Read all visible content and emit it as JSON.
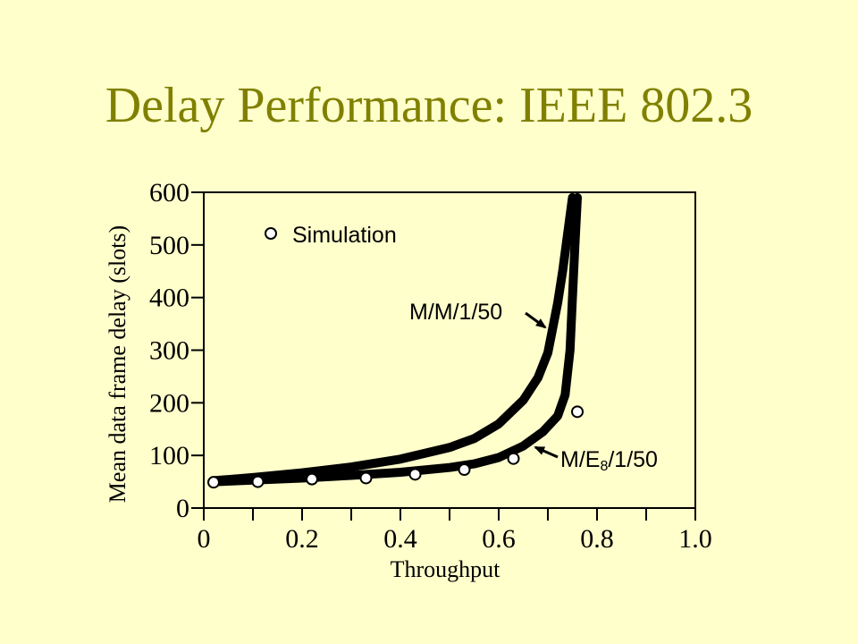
{
  "slide": {
    "title": "Delay Performance: IEEE 802.3"
  },
  "chart_data": {
    "type": "line",
    "xlabel": "Throughput",
    "ylabel": "Mean data frame delay (slots)",
    "xlim": [
      0,
      1.0
    ],
    "ylim": [
      0,
      600
    ],
    "x_tick_labels": [
      "0",
      "0.2",
      "0.4",
      "0.6",
      "0.8",
      "1.0"
    ],
    "x_tick_values": [
      0,
      0.2,
      0.4,
      0.6,
      0.8,
      1.0
    ],
    "x_minor_ticks": [
      0.1,
      0.3,
      0.5,
      0.7,
      0.9
    ],
    "y_tick_labels": [
      "0",
      "100",
      "200",
      "300",
      "400",
      "500",
      "600"
    ],
    "y_tick_values": [
      0,
      100,
      200,
      300,
      400,
      500,
      600
    ],
    "grid": false,
    "legend": {
      "position": "top-left",
      "entries": [
        "Simulation"
      ]
    },
    "series": [
      {
        "name": "M/M/1/50",
        "style": "thick-line",
        "x": [
          0.02,
          0.1,
          0.2,
          0.3,
          0.4,
          0.5,
          0.55,
          0.6,
          0.65,
          0.68,
          0.7,
          0.72,
          0.73,
          0.74,
          0.75
        ],
        "y": [
          52,
          58,
          67,
          78,
          93,
          115,
          132,
          160,
          205,
          248,
          295,
          390,
          450,
          520,
          590
        ]
      },
      {
        "name": "M/E8/1/50",
        "style": "thick-line",
        "x": [
          0.02,
          0.1,
          0.2,
          0.3,
          0.4,
          0.5,
          0.55,
          0.6,
          0.65,
          0.69,
          0.72,
          0.735,
          0.745,
          0.75,
          0.755,
          0.76
        ],
        "y": [
          50,
          53,
          57,
          62,
          68,
          77,
          84,
          96,
          118,
          145,
          175,
          215,
          300,
          400,
          500,
          590
        ]
      },
      {
        "name": "Simulation",
        "style": "markers",
        "x": [
          0.02,
          0.11,
          0.22,
          0.33,
          0.43,
          0.53,
          0.63,
          0.76
        ],
        "y": [
          49,
          50,
          55,
          57,
          64,
          73,
          94,
          183
        ]
      }
    ],
    "annotations": [
      {
        "text": "M/M/1/50",
        "points_to": "M/M/1/50"
      },
      {
        "text_main": "M/E",
        "text_sub": "8",
        "text_tail": "/1/50",
        "points_to": "M/E8/1/50"
      }
    ]
  }
}
